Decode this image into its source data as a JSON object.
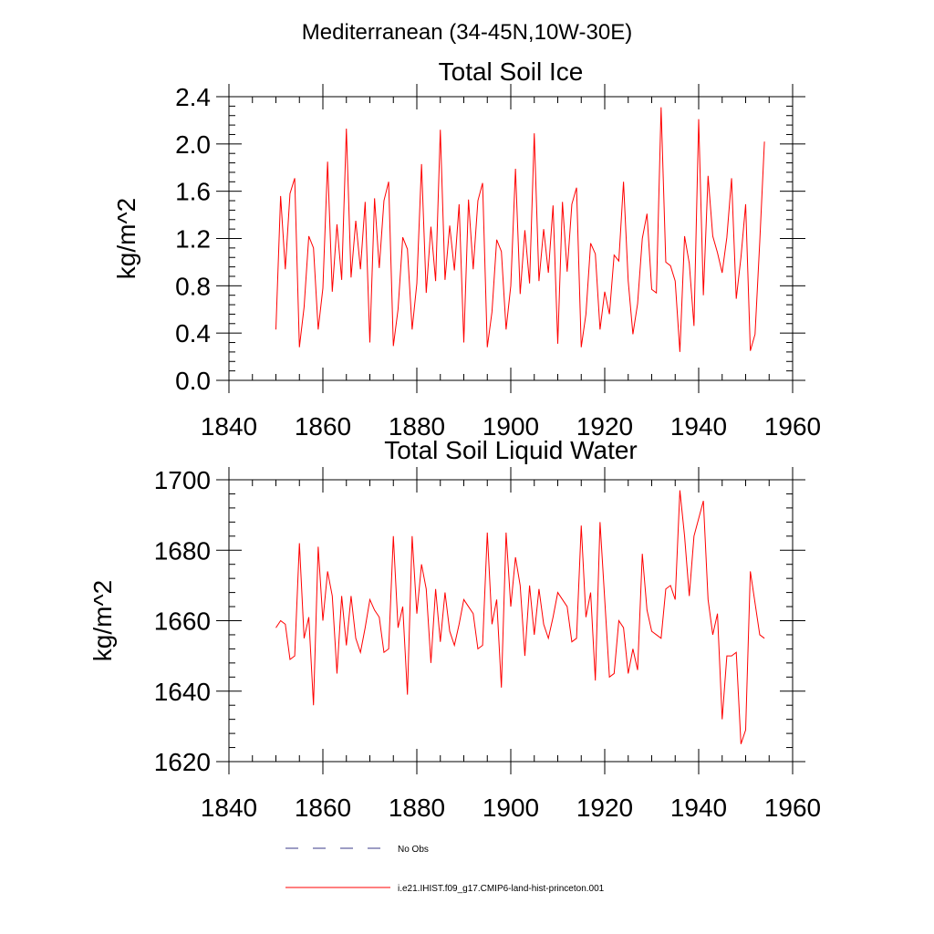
{
  "figure_title": "Mediterranean (34-45N,10W-30E)",
  "chart_data": [
    {
      "type": "line",
      "title": "Total Soil Ice",
      "xlabel": "",
      "ylabel": "kg/m^2",
      "xlim": [
        1840,
        1960
      ],
      "ylim": [
        0.0,
        2.4
      ],
      "x_ticks": [
        1840,
        1860,
        1880,
        1900,
        1920,
        1940,
        1960
      ],
      "x_tick_labels": [
        "1840",
        "1860",
        "1880",
        "1900",
        "1920",
        "1940",
        "1960"
      ],
      "y_ticks": [
        0.0,
        0.4,
        0.8,
        1.2,
        1.6,
        2.0,
        2.4
      ],
      "y_tick_labels": [
        "0.0",
        "0.4",
        "0.8",
        "1.2",
        "1.6",
        "2.0",
        "2.4"
      ],
      "grid": false,
      "x": [
        1850,
        1851,
        1852,
        1853,
        1854,
        1855,
        1856,
        1857,
        1858,
        1859,
        1860,
        1861,
        1862,
        1863,
        1864,
        1865,
        1866,
        1867,
        1868,
        1869,
        1870,
        1871,
        1872,
        1873,
        1874,
        1875,
        1876,
        1877,
        1878,
        1879,
        1880,
        1881,
        1882,
        1883,
        1884,
        1885,
        1886,
        1887,
        1888,
        1889,
        1890,
        1891,
        1892,
        1893,
        1894,
        1895,
        1896,
        1897,
        1898,
        1899,
        1900,
        1901,
        1902,
        1903,
        1904,
        1905,
        1906,
        1907,
        1908,
        1909,
        1910,
        1911,
        1912,
        1913,
        1914,
        1915,
        1916,
        1917,
        1918,
        1919,
        1920,
        1921,
        1922,
        1923,
        1924,
        1925,
        1926,
        1927,
        1928,
        1929,
        1930,
        1931,
        1932,
        1933,
        1934,
        1935,
        1936,
        1937,
        1938,
        1939,
        1940,
        1941,
        1942,
        1943,
        1944,
        1945,
        1946,
        1947,
        1948,
        1949,
        1950,
        1951,
        1952,
        1953,
        1954
      ],
      "series": [
        {
          "name": "i.e21.IHIST.f09_g17.CMIP6-land-hist-princeton.001",
          "color": "#ff0000",
          "values": [
            0.43,
            1.56,
            0.94,
            1.58,
            1.71,
            0.28,
            0.62,
            1.22,
            1.12,
            0.43,
            0.78,
            1.85,
            0.75,
            1.32,
            0.85,
            2.13,
            0.87,
            1.35,
            0.94,
            1.51,
            0.32,
            1.54,
            0.95,
            1.52,
            1.68,
            0.29,
            0.6,
            1.21,
            1.11,
            0.43,
            0.82,
            1.83,
            0.74,
            1.3,
            0.84,
            2.12,
            0.85,
            1.31,
            0.93,
            1.49,
            0.32,
            1.53,
            0.94,
            1.52,
            1.67,
            0.28,
            0.58,
            1.19,
            1.09,
            0.43,
            0.8,
            1.79,
            0.73,
            1.27,
            0.82,
            2.09,
            0.84,
            1.28,
            0.91,
            1.48,
            0.31,
            1.51,
            0.92,
            1.49,
            1.63,
            0.28,
            0.56,
            1.16,
            1.07,
            0.43,
            0.75,
            0.56,
            1.06,
            1.01,
            1.68,
            0.84,
            0.39,
            0.65,
            1.2,
            1.41,
            0.77,
            0.74,
            2.31,
            1.0,
            0.97,
            0.84,
            0.24,
            1.22,
            0.99,
            0.46,
            2.21,
            0.72,
            1.73,
            1.22,
            1.08,
            0.91,
            1.21,
            1.71,
            0.69,
            1.04,
            1.49,
            0.25,
            0.39,
            1.17,
            2.02
          ]
        }
      ]
    },
    {
      "type": "line",
      "title": "Total Soil Liquid Water",
      "xlabel": "",
      "ylabel": "kg/m^2",
      "xlim": [
        1840,
        1960
      ],
      "ylim": [
        1620,
        1700
      ],
      "x_ticks": [
        1840,
        1860,
        1880,
        1900,
        1920,
        1940,
        1960
      ],
      "x_tick_labels": [
        "1840",
        "1860",
        "1880",
        "1900",
        "1920",
        "1940",
        "1960"
      ],
      "y_ticks": [
        1620,
        1640,
        1660,
        1680,
        1700
      ],
      "y_tick_labels": [
        "1620",
        "1640",
        "1660",
        "1680",
        "1700"
      ],
      "grid": false,
      "x": [
        1850,
        1851,
        1852,
        1853,
        1854,
        1855,
        1856,
        1857,
        1858,
        1859,
        1860,
        1861,
        1862,
        1863,
        1864,
        1865,
        1866,
        1867,
        1868,
        1869,
        1870,
        1871,
        1872,
        1873,
        1874,
        1875,
        1876,
        1877,
        1878,
        1879,
        1880,
        1881,
        1882,
        1883,
        1884,
        1885,
        1886,
        1887,
        1888,
        1889,
        1890,
        1891,
        1892,
        1893,
        1894,
        1895,
        1896,
        1897,
        1898,
        1899,
        1900,
        1901,
        1902,
        1903,
        1904,
        1905,
        1906,
        1907,
        1908,
        1909,
        1910,
        1911,
        1912,
        1913,
        1914,
        1915,
        1916,
        1917,
        1918,
        1919,
        1920,
        1921,
        1922,
        1923,
        1924,
        1925,
        1926,
        1927,
        1928,
        1929,
        1930,
        1931,
        1932,
        1933,
        1934,
        1935,
        1936,
        1937,
        1938,
        1939,
        1940,
        1941,
        1942,
        1943,
        1944,
        1945,
        1946,
        1947,
        1948,
        1949,
        1950,
        1951,
        1952,
        1953,
        1954
      ],
      "series": [
        {
          "name": "i.e21.IHIST.f09_g17.CMIP6-land-hist-princeton.001",
          "color": "#ff0000",
          "values": [
            1658,
            1660,
            1659,
            1649,
            1650,
            1682,
            1655,
            1661,
            1636,
            1681,
            1660,
            1674,
            1667,
            1645,
            1667,
            1653,
            1667,
            1655,
            1651,
            1658,
            1666,
            1663,
            1661,
            1651,
            1652,
            1684,
            1658,
            1664,
            1639,
            1684,
            1662,
            1676,
            1669,
            1648,
            1669,
            1654,
            1668,
            1657,
            1653,
            1659,
            1666,
            1664,
            1662,
            1652,
            1653,
            1685,
            1659,
            1666,
            1641,
            1685,
            1664,
            1678,
            1670,
            1650,
            1670,
            1656,
            1669,
            1659,
            1655,
            1661,
            1668,
            1666,
            1664,
            1654,
            1655,
            1687,
            1661,
            1668,
            1643,
            1688,
            1666,
            1644,
            1645,
            1660,
            1658,
            1645,
            1652,
            1646,
            1679,
            1663,
            1657,
            1656,
            1655,
            1669,
            1670,
            1666,
            1697,
            1684,
            1667,
            1684,
            1689,
            1694,
            1666,
            1656,
            1662,
            1632,
            1650,
            1650,
            1651,
            1625,
            1629,
            1674,
            1665,
            1656,
            1655
          ]
        }
      ]
    }
  ],
  "legend": {
    "items": [
      {
        "label": "No Obs",
        "style": "dashed",
        "color": "#3b3b8a"
      },
      {
        "label": "i.e21.IHIST.f09_g17.CMIP6-land-hist-princeton.001",
        "style": "solid",
        "color": "#ff0000"
      }
    ]
  }
}
